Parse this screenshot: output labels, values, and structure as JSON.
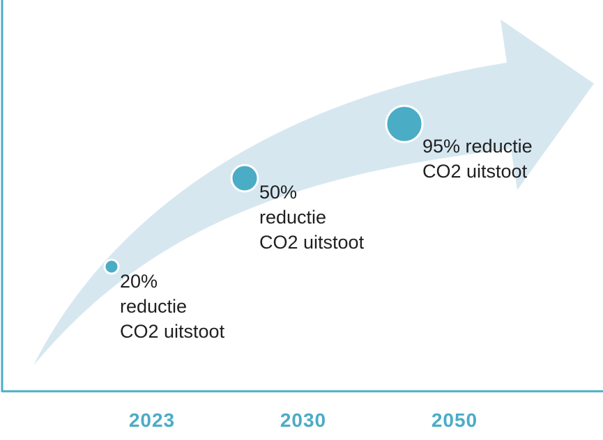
{
  "colors": {
    "arrow_fill": "#d6e7f0",
    "axis": "#4bacc6",
    "dot_fill": "#4bacc6",
    "dot_stroke": "#ffffff",
    "year_text": "#4bacc6",
    "label_text": "#1f1f1f"
  },
  "milestones": [
    {
      "line1": "20%",
      "line2": "reductie",
      "line3": "CO2 uitstoot"
    },
    {
      "line1": "50%",
      "line2": "reductie",
      "line3": "CO2 uitstoot"
    },
    {
      "line1": "95% reductie",
      "line2": "CO2 uitstoot"
    }
  ],
  "years": [
    "2023",
    "2030",
    "2050"
  ]
}
